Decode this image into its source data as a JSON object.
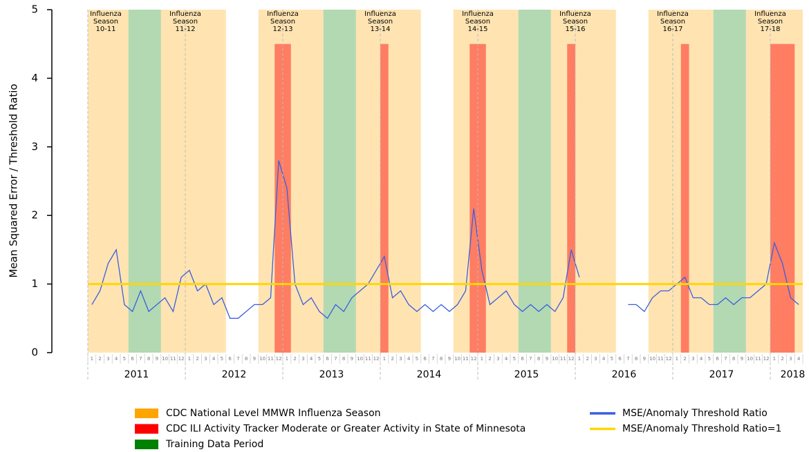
{
  "chart_data": {
    "type": "line",
    "ylabel": "Mean Squared Error / Threshold Ratio",
    "ylim": [
      0,
      5
    ],
    "yticks": [
      0,
      1,
      2,
      3,
      4,
      5
    ],
    "xlim": [
      "2011-01",
      "2018-04"
    ],
    "month_ticks": [
      1,
      2,
      3,
      4,
      5,
      6,
      7,
      8,
      9,
      10,
      11,
      12
    ],
    "years": [
      2011,
      2012,
      2013,
      2014,
      2015,
      2016,
      2017,
      2018
    ],
    "regions": [
      {
        "name": "CDC National Level MMWR Influenza Season",
        "color": "#ffa500",
        "spans": [
          {
            "start": "2010-10",
            "end": "2011-05",
            "label": [
              "Influenza",
              "Season",
              "10-11"
            ]
          },
          {
            "start": "2011-10",
            "end": "2012-05",
            "label": [
              "Influenza",
              "Season",
              "11-12"
            ]
          },
          {
            "start": "2012-10",
            "end": "2013-05",
            "label": [
              "Influenza",
              "Season",
              "12-13"
            ]
          },
          {
            "start": "2013-10",
            "end": "2014-05",
            "label": [
              "Influenza",
              "Season",
              "13-14"
            ]
          },
          {
            "start": "2014-10",
            "end": "2015-05",
            "label": [
              "Influenza",
              "Season",
              "14-15"
            ]
          },
          {
            "start": "2015-10",
            "end": "2016-05",
            "label": [
              "Influenza",
              "Season",
              "15-16"
            ]
          },
          {
            "start": "2016-10",
            "end": "2017-05",
            "label": [
              "Influenza",
              "Season",
              "16-17"
            ]
          },
          {
            "start": "2017-10",
            "end": "2018-05",
            "label": [
              "Influenza",
              "Season",
              "17-18"
            ]
          }
        ]
      },
      {
        "name": "CDC ILI Activity Tracker Moderate or Greater Activity in State of Minnesota",
        "color": "#ff0000",
        "top": 4.5,
        "spans": [
          {
            "start": "2012-12",
            "end": "2013-01"
          },
          {
            "start": "2014-01",
            "end": "2014-01"
          },
          {
            "start": "2014-12",
            "end": "2015-01"
          },
          {
            "start": "2015-12",
            "end": "2015-12"
          },
          {
            "start": "2017-02",
            "end": "2017-02"
          },
          {
            "start": "2018-01",
            "end": "2018-03"
          }
        ]
      },
      {
        "name": "Training Data Period",
        "color": "#008000",
        "spans": [
          {
            "start": "2011-06",
            "end": "2011-09"
          },
          {
            "start": "2013-06",
            "end": "2013-09"
          },
          {
            "start": "2015-06",
            "end": "2015-09"
          },
          {
            "start": "2017-06",
            "end": "2017-09"
          }
        ]
      }
    ],
    "x": [
      "2011-01",
      "2011-02",
      "2011-03",
      "2011-04",
      "2011-05",
      "2011-06",
      "2011-07",
      "2011-08",
      "2011-09",
      "2011-10",
      "2011-11",
      "2011-12",
      "2012-01",
      "2012-02",
      "2012-03",
      "2012-04",
      "2012-05",
      "2012-06",
      "2012-07",
      "2012-08",
      "2012-09",
      "2012-10",
      "2012-11",
      "2012-12",
      "2013-01",
      "2013-02",
      "2013-03",
      "2013-04",
      "2013-05",
      "2013-06",
      "2013-07",
      "2013-08",
      "2013-09",
      "2013-10",
      "2013-11",
      "2013-12",
      "2014-01",
      "2014-02",
      "2014-03",
      "2014-04",
      "2014-05",
      "2014-06",
      "2014-07",
      "2014-08",
      "2014-09",
      "2014-10",
      "2014-11",
      "2014-12",
      "2015-01",
      "2015-02",
      "2015-03",
      "2015-04",
      "2015-05",
      "2015-06",
      "2015-07",
      "2015-08",
      "2015-09",
      "2015-10",
      "2015-11",
      "2015-12",
      "2016-01",
      "2016-02",
      "2016-03",
      "2016-04",
      "2016-05",
      "2016-06",
      "2016-07",
      "2016-08",
      "2016-09",
      "2016-10",
      "2016-11",
      "2016-12",
      "2017-01",
      "2017-02",
      "2017-03",
      "2017-04",
      "2017-05",
      "2017-06",
      "2017-07",
      "2017-08",
      "2017-09",
      "2017-10",
      "2017-11",
      "2017-12",
      "2018-01",
      "2018-02",
      "2018-03",
      "2018-04"
    ],
    "series": [
      {
        "name": "MSE/Anomaly Threshold Ratio",
        "color": "#3a5ee0",
        "values": [
          0.7,
          0.9,
          1.3,
          1.5,
          0.7,
          0.6,
          0.9,
          0.6,
          0.7,
          0.8,
          0.6,
          1.1,
          1.2,
          0.9,
          1.0,
          0.7,
          0.8,
          0.5,
          0.5,
          0.6,
          0.7,
          0.7,
          0.8,
          2.8,
          2.4,
          1.0,
          0.7,
          0.8,
          0.6,
          0.5,
          0.7,
          0.6,
          0.8,
          0.9,
          1.0,
          1.2,
          1.4,
          0.8,
          0.9,
          0.7,
          0.6,
          0.7,
          0.6,
          0.7,
          0.6,
          0.7,
          0.9,
          2.1,
          1.2,
          0.7,
          0.8,
          0.9,
          0.7,
          0.6,
          0.7,
          0.6,
          0.7,
          0.6,
          0.8,
          1.5,
          1.1,
          null,
          null,
          null,
          null,
          null,
          0.7,
          0.7,
          0.6,
          0.8,
          0.9,
          0.9,
          1.0,
          1.1,
          0.8,
          0.8,
          0.7,
          0.7,
          0.8,
          0.7,
          0.8,
          0.8,
          0.9,
          1.0,
          1.6,
          1.3,
          0.8,
          0.7
        ]
      },
      {
        "name": "MSE/Anomaly Threshold Ratio=1",
        "color": "#ffd700",
        "value": 1
      }
    ]
  }
}
